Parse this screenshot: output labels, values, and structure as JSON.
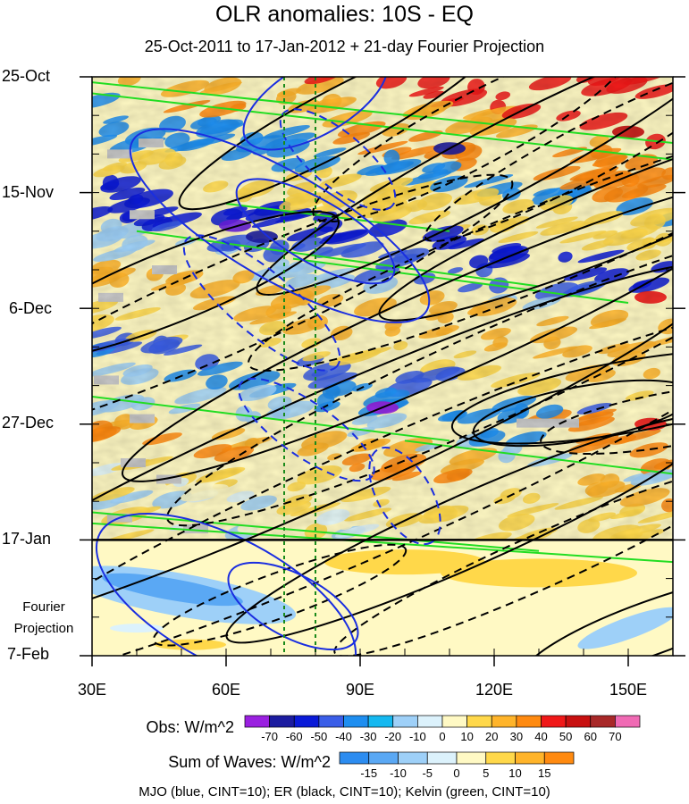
{
  "chart_data": {
    "type": "heatmap",
    "title": "OLR anomalies: 10S - EQ",
    "subtitle": "25-Oct-2011 to 17-Jan-2012 + 21-day Fourier Projection",
    "x_axis": {
      "ticks": [
        "30E",
        "60E",
        "90E",
        "120E",
        "150E"
      ],
      "tick_values": [
        30,
        60,
        90,
        120,
        150
      ],
      "range": [
        30,
        160
      ],
      "unit": "degrees east"
    },
    "y_axis": {
      "ticks": [
        "25-Oct",
        "15-Nov",
        "6-Dec",
        "27-Dec",
        "17-Jan",
        "7-Feb"
      ],
      "tick_days": [
        0,
        21,
        42,
        63,
        84,
        105
      ],
      "range_days": [
        0,
        105
      ],
      "inverted": true,
      "forecast_start_day": 84
    },
    "projection_label_line1": "Fourier",
    "projection_label_line2": "Projection",
    "reference_lines_lon": [
      73,
      80
    ],
    "colorbars": [
      {
        "label": "Obs: W/m^2",
        "levels": [
          "-70",
          "-60",
          "-50",
          "-40",
          "-30",
          "-20",
          "-10",
          "0",
          "10",
          "20",
          "30",
          "40",
          "50",
          "60",
          "70"
        ],
        "colors": [
          "#9a20e0",
          "#1c1ca0",
          "#0a1ad8",
          "#3a5ee8",
          "#1e8ef0",
          "#14b8f0",
          "#9ed0f8",
          "#dcf2fc",
          "#fff9c4",
          "#ffd84a",
          "#ffb42a",
          "#ff8a10",
          "#f01818",
          "#c81010",
          "#a82828",
          "#f06ab4"
        ]
      },
      {
        "label": "Sum of Waves: W/m^2",
        "levels": [
          "-15",
          "-10",
          "-5",
          "0",
          "5",
          "10",
          "15"
        ],
        "colors": [
          "#2c8cf0",
          "#5aa8f4",
          "#9ed0f8",
          "#dcf2fc",
          "#fff9c4",
          "#ffd84a",
          "#ffb42a",
          "#ff8a10"
        ]
      }
    ],
    "footer": "MJO (blue, CINT=10); ER (black, CINT=10); Kelvin (green, CINT=10)",
    "wave_colors": {
      "MJO": "#1a2ee0",
      "ER": "#000000",
      "Kelvin": "#22dd22",
      "reference_line": "#1a8a1a"
    }
  }
}
